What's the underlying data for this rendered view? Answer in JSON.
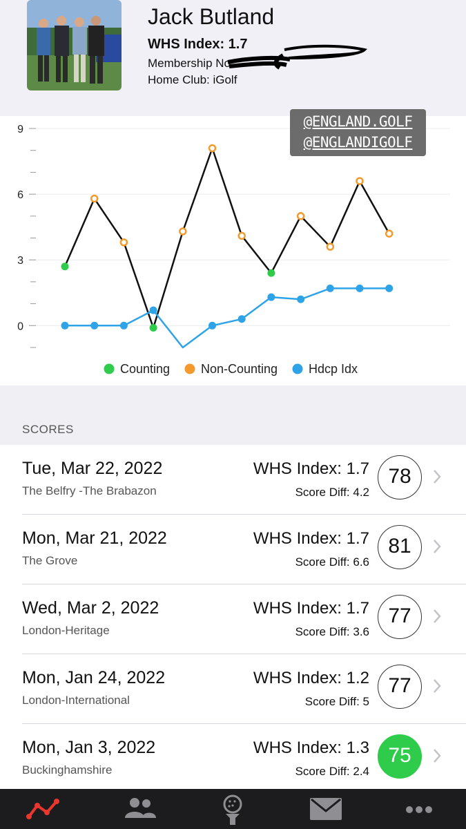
{
  "profile": {
    "name": "Jack Butland",
    "whs_index": "WHS Index: 1.7",
    "membership_label": "Membership No",
    "home_club": "Home Club: iGolf"
  },
  "watermark": {
    "line1": "@ENGLAND.GOLF",
    "line2": "@ENGLANDIGOLF"
  },
  "chart_data": {
    "type": "line",
    "ylim": [
      -1,
      9
    ],
    "y_ticks": [
      "9",
      "6",
      "3",
      "0"
    ],
    "grid": true,
    "legend_placement": "bottom-center",
    "legend": [
      "Counting",
      "Non-Counting",
      "Hdcp Idx"
    ],
    "series": [
      {
        "name": "Counting",
        "color": "#2ecc4a",
        "points": [
          [
            0,
            2.7
          ],
          [
            3,
            -0.1
          ],
          [
            7,
            2.4
          ]
        ]
      },
      {
        "name": "Non-Counting",
        "color": "#f29a2e",
        "points": [
          [
            1,
            5.8
          ],
          [
            2,
            3.8
          ],
          [
            4,
            4.3
          ],
          [
            5,
            8.1
          ],
          [
            6,
            4.1
          ],
          [
            8,
            5.0
          ],
          [
            9,
            3.6
          ],
          [
            10,
            6.6
          ],
          [
            11,
            4.2
          ]
        ]
      },
      {
        "name": "Hdcp Idx",
        "color": "#2ea3e8",
        "values": [
          0.0,
          0.0,
          0.0,
          0.7,
          -1.0,
          0.0,
          0.3,
          1.3,
          1.2,
          1.7,
          1.7,
          1.7
        ]
      }
    ],
    "score_diffs": [
      2.7,
      5.8,
      3.8,
      -0.1,
      4.3,
      8.1,
      4.1,
      2.4,
      5.0,
      3.6,
      6.6,
      4.2
    ]
  },
  "scores": {
    "header": "SCORES",
    "rows": [
      {
        "date": "Tue, Mar 22, 2022",
        "course": "The Belfry -The Brabazon",
        "index": "WHS Index: 1.7",
        "diff": "Score Diff: 4.2",
        "score": "78",
        "counting": false
      },
      {
        "date": "Mon, Mar 21, 2022",
        "course": "The Grove",
        "index": "WHS Index: 1.7",
        "diff": "Score Diff: 6.6",
        "score": "81",
        "counting": false
      },
      {
        "date": "Wed, Mar 2, 2022",
        "course": "London-Heritage",
        "index": "WHS Index: 1.7",
        "diff": "Score Diff: 3.6",
        "score": "77",
        "counting": false
      },
      {
        "date": "Mon, Jan 24, 2022",
        "course": "London-International",
        "index": "WHS Index: 1.2",
        "diff": "Score Diff: 5",
        "score": "77",
        "counting": false
      },
      {
        "date": "Mon, Jan 3, 2022",
        "course": "Buckinghamshire",
        "index": "WHS Index: 1.3",
        "diff": "Score Diff: 2.4",
        "score": "75",
        "counting": true
      }
    ]
  },
  "tabbar": {
    "items": [
      {
        "icon": "trend-chart-icon",
        "active": true,
        "color": "#e8372f"
      },
      {
        "icon": "people-icon",
        "active": false
      },
      {
        "icon": "golf-ball-tee-icon",
        "active": false
      },
      {
        "icon": "envelope-icon",
        "active": false
      },
      {
        "icon": "more-dots-icon",
        "active": false
      }
    ]
  }
}
